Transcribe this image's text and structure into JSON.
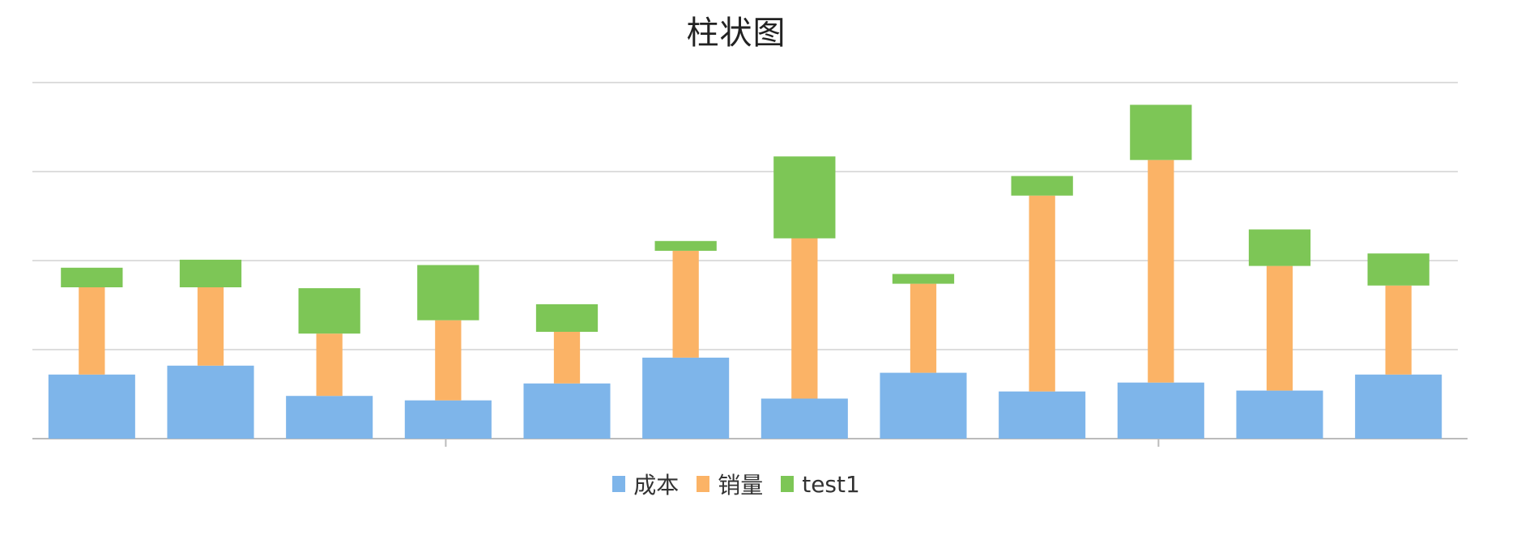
{
  "chart_data": {
    "type": "bar",
    "stacked": true,
    "title": "柱状图",
    "categories": [
      "",
      "",
      "",
      "",
      "",
      "",
      "",
      "",
      "",
      "",
      "",
      ""
    ],
    "series": [
      {
        "name": "成本",
        "color": "#7eb5ea",
        "values": [
          72,
          82,
          48,
          43,
          62,
          91,
          45,
          74,
          53,
          63,
          54,
          72
        ]
      },
      {
        "name": "销量",
        "color": "#fbb366",
        "values": [
          98,
          88,
          70,
          90,
          58,
          120,
          180,
          100,
          220,
          250,
          140,
          100
        ]
      },
      {
        "name": "test1",
        "color": "#7dc656",
        "values": [
          22,
          31,
          51,
          62,
          31,
          11,
          92,
          11,
          22,
          62,
          41,
          36
        ]
      }
    ],
    "ylim": [
      0,
      400
    ],
    "grid": true,
    "legend": "bottom-center",
    "xlabel": "",
    "ylabel": ""
  }
}
